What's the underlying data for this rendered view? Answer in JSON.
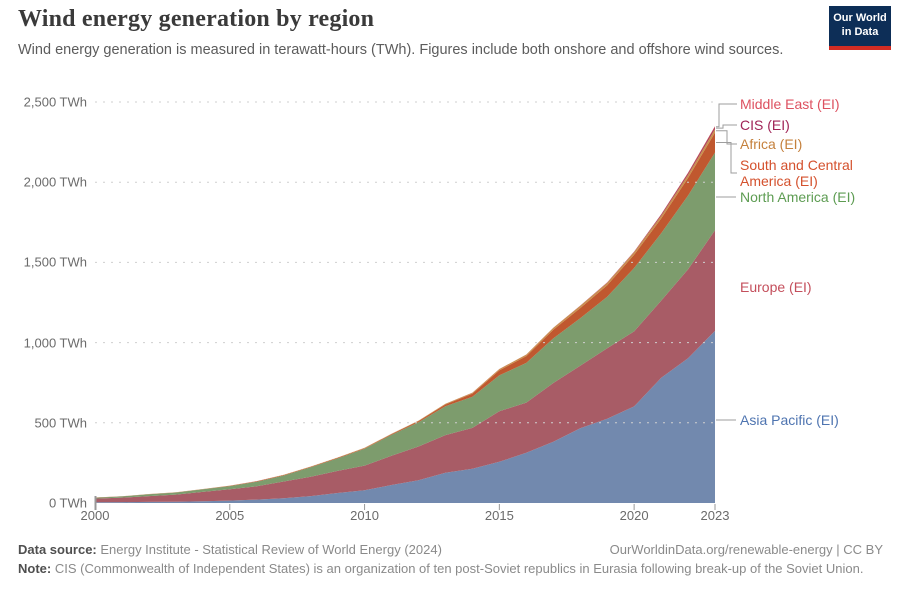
{
  "header": {
    "title": "Wind energy generation by region",
    "subtitle": "Wind energy generation is measured in terawatt-hours (TWh). Figures include both onshore and offshore wind sources.",
    "logo": {
      "line1": "Our World",
      "line2": "in Data",
      "bg_color": "#0d2e57",
      "accent_color": "#d22c23"
    }
  },
  "chart_data": {
    "type": "area",
    "stacked": true,
    "title": "Wind energy generation by region",
    "unit": "TWh",
    "grid": "dashed",
    "legend_position": "right",
    "x": [
      2000,
      2001,
      2002,
      2003,
      2004,
      2005,
      2006,
      2007,
      2008,
      2009,
      2010,
      2011,
      2012,
      2013,
      2014,
      2015,
      2016,
      2017,
      2018,
      2019,
      2020,
      2021,
      2022,
      2023
    ],
    "series": [
      {
        "name": "Asia Pacific (EI)",
        "fill": "#7289ae",
        "label_color": "#4e74b0",
        "values": [
          4.7,
          5.6,
          6.7,
          8.0,
          10.4,
          14.8,
          20.9,
          29.9,
          42.9,
          62.6,
          79.3,
          112,
          142,
          188,
          214,
          257,
          313,
          382,
          466,
          525,
          602,
          780,
          902,
          1073
        ]
      },
      {
        "name": "Europe (EI)",
        "fill": "#a85c66",
        "label_color": "#c44f5c",
        "values": [
          22.6,
          28.0,
          36.6,
          44.6,
          59.0,
          70.8,
          83.2,
          104.3,
          121.3,
          137.8,
          153.7,
          182.1,
          210.2,
          235.1,
          254.4,
          314.6,
          312.7,
          365.9,
          389.3,
          440.3,
          467.9,
          480.9,
          554.2,
          627.3
        ]
      },
      {
        "name": "North America (EI)",
        "fill": "#7d9c6d",
        "label_color": "#5d9c52",
        "values": [
          6.0,
          7.3,
          11.2,
          12.6,
          15.7,
          19.5,
          28.4,
          37.4,
          58.4,
          77.8,
          105.3,
          130.5,
          151.1,
          180.1,
          194.6,
          224,
          248,
          278,
          297,
          320,
          395,
          420,
          460,
          485
        ]
      },
      {
        "name": "South and Central America (EI)",
        "fill": "#c0582f",
        "label_color": "#d4512d",
        "values": [
          0.7,
          0.8,
          0.9,
          1.1,
          1.4,
          2.2,
          2.6,
          3.0,
          3.3,
          3.5,
          3.6,
          4.7,
          7.3,
          11,
          19,
          31,
          42,
          54,
          63,
          72,
          82.4,
          92,
          110,
          124
        ]
      },
      {
        "name": "Africa (EI)",
        "fill": "#c9904f",
        "label_color": "#c5813d",
        "values": [
          0.2,
          0.3,
          0.4,
          0.5,
          0.7,
          0.9,
          1.1,
          1.4,
          1.8,
          2.0,
          2.3,
          2.6,
          3.0,
          4.2,
          5.8,
          8.2,
          9.6,
          11.7,
          13.6,
          15.2,
          16.1,
          18.5,
          20.8,
          23.3
        ]
      },
      {
        "name": "CIS (EI)",
        "fill": "#9e2a57",
        "label_color": "#a02457",
        "values": [
          0,
          0,
          0,
          0,
          0,
          0,
          0,
          0,
          0,
          0,
          0,
          0.1,
          0.1,
          0.1,
          0.1,
          0.1,
          0.1,
          0.2,
          0.4,
          1.5,
          2.3,
          5.5,
          7.5,
          9.5
        ]
      },
      {
        "name": "Middle East (EI)",
        "fill": "#bf3a41",
        "label_color": "#dd5160",
        "values": [
          0,
          0,
          0,
          0.1,
          0.1,
          0.1,
          0.1,
          0.1,
          0.1,
          0.2,
          0.2,
          0.2,
          0.2,
          0.3,
          0.3,
          0.4,
          0.6,
          0.9,
          1.2,
          1.5,
          1.7,
          2.5,
          4.5,
          6.8
        ]
      }
    ],
    "y_axis": {
      "range": [
        0,
        2500
      ],
      "tick_values": [
        0,
        500,
        1000,
        1500,
        2000,
        2500
      ],
      "tick_labels": [
        "0 TWh",
        "500 TWh",
        "1,000 TWh",
        "1,500 TWh",
        "2,000 TWh",
        "2,500 TWh"
      ]
    },
    "x_axis": {
      "tick_values": [
        2000,
        2005,
        2010,
        2015,
        2020,
        2023
      ],
      "tick_labels": [
        "2000",
        "2005",
        "2010",
        "2015",
        "2020",
        "2023"
      ]
    }
  },
  "footer": {
    "source_label": "Data source:",
    "source_text": "Energy Institute - Statistical Review of World Energy (2024)",
    "link_text": "OurWorldinData.org/renewable-energy | CC BY",
    "note_label": "Note:",
    "note_text": "CIS (Commonwealth of Independent States) is an organization of ten post-Soviet republics in Eurasia following break-up of the Soviet Union."
  }
}
